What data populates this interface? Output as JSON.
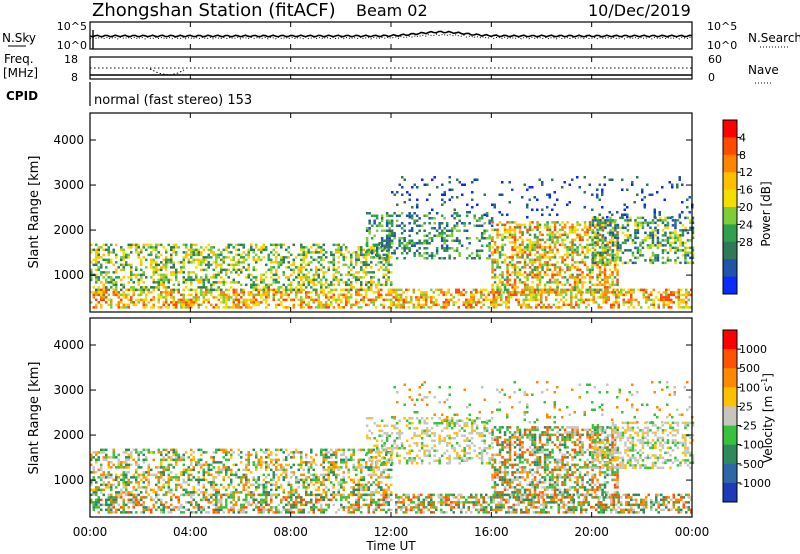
{
  "header": {
    "station": "Zhongshan Station (fitACF)",
    "beam": "Beam 02",
    "date": "10/Dec/2019"
  },
  "noise_panel": {
    "left_label": "N.Sky",
    "right_label": "N.Search",
    "left_ticks": [
      "10^5",
      "10^0"
    ],
    "right_ticks": [
      "10^5",
      "10^0"
    ]
  },
  "freq_panel": {
    "left_label_1": "Freq.",
    "left_label_2": "[MHz]",
    "left_ticks": [
      "18",
      "8"
    ],
    "right_label": "Nave",
    "right_ticks": [
      "60",
      "0"
    ]
  },
  "cpid_panel": {
    "label": "CPID",
    "text": "normal (fast stereo) 153"
  },
  "chart_data": [
    {
      "type": "heatmap",
      "name": "power",
      "ylabel": "Slant Range [km]",
      "ylim": [
        180,
        4600
      ],
      "yticks": [
        "1000",
        "2000",
        "3000",
        "4000"
      ],
      "ytick_values": [
        1000,
        2000,
        3000,
        4000
      ],
      "xlim": [
        0,
        24
      ],
      "colorbar_label": "Power [dB]",
      "colorbar_ticks": [
        "4",
        "8",
        "12",
        "16",
        "20",
        "24",
        "28"
      ],
      "colorbar_colors": [
        "#0a2bff",
        "#1f54a8",
        "#2e7a58",
        "#2fa050",
        "#7fcc3a",
        "#f3de00",
        "#ffbf00",
        "#ff8400",
        "#ff4a00",
        "#ff0000"
      ]
    },
    {
      "type": "heatmap",
      "name": "velocity",
      "ylabel": "Slant Range [km]",
      "ylim": [
        180,
        4600
      ],
      "yticks": [
        "1000",
        "2000",
        "3000",
        "4000"
      ],
      "ytick_values": [
        1000,
        2000,
        3000,
        4000
      ],
      "xlim": [
        0,
        24
      ],
      "colorbar_label": "Velocity [m s",
      "colorbar_label_sup": "-1",
      "colorbar_label_end": "]",
      "colorbar_ticks": [
        "1000",
        "500",
        "100",
        "25",
        "-25",
        "-100",
        "-500",
        "-1000"
      ],
      "colorbar_colors": [
        "#1f3ab8",
        "#2f66a8",
        "#2e8a5a",
        "#37c13c",
        "#c6c6be",
        "#ffc000",
        "#ff8a00",
        "#ff5200",
        "#ff0000"
      ]
    }
  ],
  "time_axis": {
    "label": "Time UT",
    "ticks": [
      "00:00",
      "04:00",
      "08:00",
      "12:00",
      "16:00",
      "20:00",
      "00:00"
    ],
    "tick_hours": [
      0,
      4,
      8,
      12,
      16,
      20,
      24
    ]
  }
}
